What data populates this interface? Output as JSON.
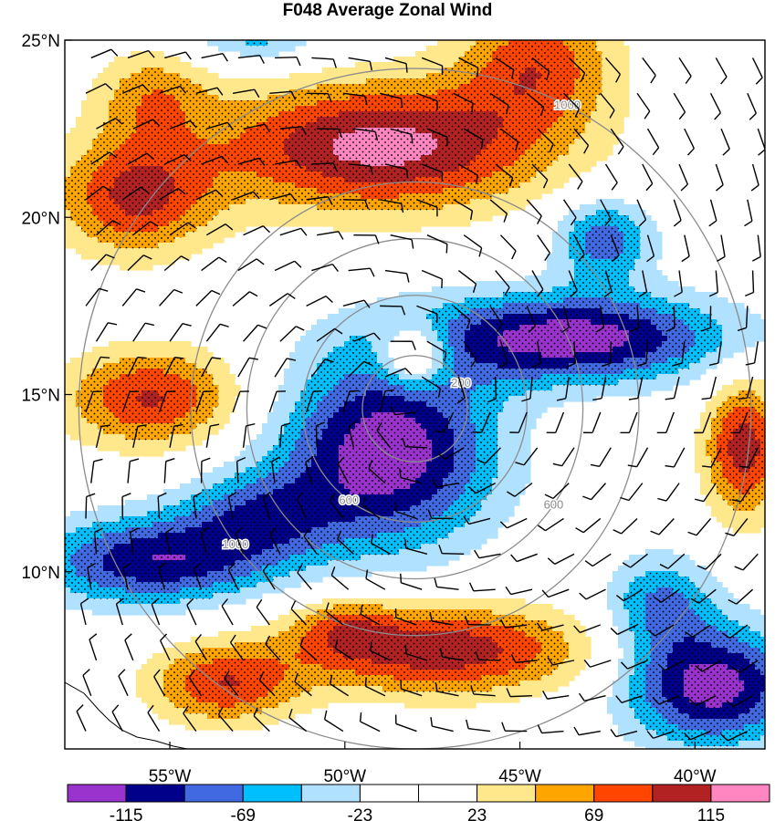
{
  "chart_data": {
    "type": "heatmap",
    "title": "F048 Average Zonal Wind",
    "xlabel": "",
    "ylabel": "",
    "xlim": [
      -58.0,
      -38.0
    ],
    "ylim": [
      5.0,
      25.0
    ],
    "x_ticks": [
      {
        "value": -55,
        "label": "55°W"
      },
      {
        "value": -50,
        "label": "50°W"
      },
      {
        "value": -45,
        "label": "45°W"
      },
      {
        "value": -40,
        "label": "40°W"
      }
    ],
    "y_ticks": [
      {
        "value": 25,
        "label": "25°N"
      },
      {
        "value": 20,
        "label": "20°N"
      },
      {
        "value": 15,
        "label": "15°N"
      },
      {
        "value": 10,
        "label": "10°N"
      }
    ],
    "colorbar": {
      "levels": [
        -138,
        -115,
        -92,
        -69,
        -46,
        -23,
        0,
        23,
        46,
        69,
        92,
        115,
        138
      ],
      "labels": [
        {
          "value": -115,
          "label": "-115"
        },
        {
          "value": -69,
          "label": "-69"
        },
        {
          "value": -23,
          "label": "-23"
        },
        {
          "value": 23,
          "label": "23"
        },
        {
          "value": 69,
          "label": "69"
        },
        {
          "value": 115,
          "label": "115"
        }
      ],
      "colors": [
        "#9a32cd",
        "#00008b",
        "#4169e1",
        "#00bfff",
        "#b0e2ff",
        "#ffffff",
        "#ffffff",
        "#ffe78c",
        "#ffa500",
        "#ff4500",
        "#b22222",
        "#ff86c1"
      ]
    },
    "features": [
      {
        "kind": "high",
        "lon": -49.0,
        "lat": 22.0,
        "peak": 125,
        "sx": 3.4,
        "sy": 1.3
      },
      {
        "kind": "high",
        "lon": -56.0,
        "lat": 20.6,
        "peak": 95,
        "sx": 1.6,
        "sy": 1.2
      },
      {
        "kind": "high",
        "lon": -44.5,
        "lat": 24.4,
        "peak": 80,
        "sx": 1.6,
        "sy": 1.3
      },
      {
        "kind": "high",
        "lon": -55.5,
        "lat": 23.5,
        "peak": 55,
        "sx": 1.2,
        "sy": 0.9
      },
      {
        "kind": "high",
        "lon": -55.5,
        "lat": 14.9,
        "peak": 95,
        "sx": 1.8,
        "sy": 1.0
      },
      {
        "kind": "high",
        "lon": -48.0,
        "lat": 16.1,
        "peak": 95,
        "sx": 0.7,
        "sy": 0.6
      },
      {
        "kind": "high",
        "lon": -38.6,
        "lat": 13.5,
        "peak": 105,
        "sx": 0.8,
        "sy": 1.4
      },
      {
        "kind": "high",
        "lon": -47.3,
        "lat": 7.8,
        "peak": 110,
        "sx": 3.1,
        "sy": 0.9
      },
      {
        "kind": "high",
        "lon": -53.5,
        "lat": 6.8,
        "peak": 85,
        "sx": 1.5,
        "sy": 0.8
      },
      {
        "kind": "high",
        "lon": -50.0,
        "lat": 8.5,
        "peak": 45,
        "sx": 1.0,
        "sy": 0.6
      },
      {
        "kind": "low",
        "lon": -48.8,
        "lat": 13.4,
        "peak": -135,
        "sx": 2.2,
        "sy": 1.9
      },
      {
        "kind": "low",
        "lon": -43.5,
        "lat": 16.6,
        "peak": -130,
        "sx": 3.2,
        "sy": 0.9
      },
      {
        "kind": "low",
        "lon": -55.5,
        "lat": 10.3,
        "peak": -110,
        "sx": 2.4,
        "sy": 0.9
      },
      {
        "kind": "low",
        "lon": -52.5,
        "lat": 11.6,
        "peak": -70,
        "sx": 1.6,
        "sy": 0.9
      },
      {
        "kind": "low",
        "lon": -42.6,
        "lat": 19.4,
        "peak": -85,
        "sx": 1.0,
        "sy": 0.8
      },
      {
        "kind": "low",
        "lon": -39.5,
        "lat": 6.8,
        "peak": -130,
        "sx": 1.8,
        "sy": 1.2
      },
      {
        "kind": "low",
        "lon": -41.0,
        "lat": 9.1,
        "peak": -70,
        "sx": 1.1,
        "sy": 1.0
      },
      {
        "kind": "low",
        "lon": -52.5,
        "lat": 25.2,
        "peak": -60,
        "sx": 1.4,
        "sy": 0.6
      }
    ],
    "range_rings": {
      "center_lon": -48.0,
      "center_lat": 14.6,
      "rings": [
        {
          "radius_deg": 1.5,
          "label": "200"
        },
        {
          "radius_deg": 3.2,
          "label": "600"
        },
        {
          "radius_deg": 4.8,
          "label": "600"
        },
        {
          "radius_deg": 6.4,
          "label": "1000"
        },
        {
          "radius_deg": 9.6,
          "label": "1000"
        }
      ]
    }
  }
}
